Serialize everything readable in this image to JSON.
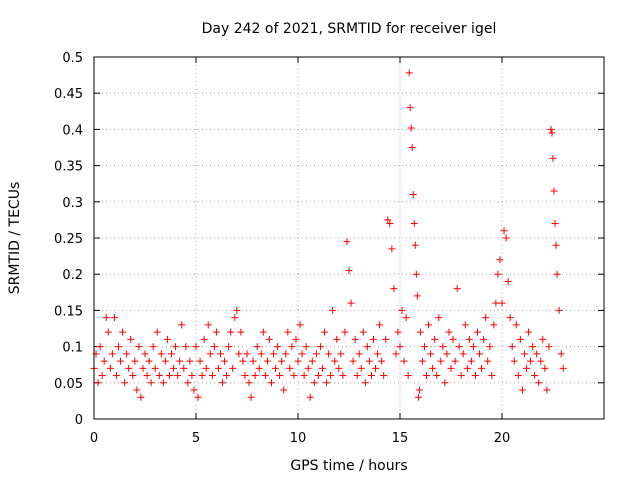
{
  "chart_data": {
    "type": "scatter",
    "title": "Day 242 of 2021, SRMTID for receiver igel",
    "xlabel": "GPS time / hours",
    "ylabel": "SRMTID / TECUs",
    "xlim": [
      0,
      25
    ],
    "ylim": [
      0,
      0.5
    ],
    "x_ticks": [
      0,
      5,
      10,
      15,
      20
    ],
    "x_tick_labels": [
      "0",
      "5",
      "10",
      "15",
      "20"
    ],
    "y_ticks": [
      0,
      0.05,
      0.1,
      0.15,
      0.2,
      0.25,
      0.3,
      0.35,
      0.4,
      0.45,
      0.5
    ],
    "y_tick_labels": [
      "0",
      "0.05",
      "0.1",
      "0.15",
      "0.2",
      "0.25",
      "0.3",
      "0.35",
      "0.4",
      "0.45",
      "0.5"
    ],
    "grid": true,
    "marker": "+",
    "color": "#ff0000",
    "series": [
      {
        "name": "SRMTID",
        "points": [
          [
            0.0,
            0.07
          ],
          [
            0.1,
            0.09
          ],
          [
            0.2,
            0.05
          ],
          [
            0.3,
            0.1
          ],
          [
            0.4,
            0.06
          ],
          [
            0.5,
            0.08
          ],
          [
            0.6,
            0.14
          ],
          [
            0.7,
            0.12
          ],
          [
            0.8,
            0.07
          ],
          [
            0.9,
            0.09
          ],
          [
            1.0,
            0.14
          ],
          [
            1.1,
            0.06
          ],
          [
            1.2,
            0.1
          ],
          [
            1.3,
            0.08
          ],
          [
            1.4,
            0.12
          ],
          [
            1.5,
            0.05
          ],
          [
            1.6,
            0.09
          ],
          [
            1.7,
            0.07
          ],
          [
            1.8,
            0.11
          ],
          [
            1.9,
            0.06
          ],
          [
            2.0,
            0.08
          ],
          [
            2.1,
            0.04
          ],
          [
            2.2,
            0.1
          ],
          [
            2.3,
            0.03
          ],
          [
            2.4,
            0.07
          ],
          [
            2.5,
            0.09
          ],
          [
            2.6,
            0.06
          ],
          [
            2.7,
            0.08
          ],
          [
            2.8,
            0.05
          ],
          [
            2.9,
            0.1
          ],
          [
            3.0,
            0.07
          ],
          [
            3.1,
            0.12
          ],
          [
            3.2,
            0.06
          ],
          [
            3.3,
            0.09
          ],
          [
            3.4,
            0.05
          ],
          [
            3.5,
            0.08
          ],
          [
            3.6,
            0.11
          ],
          [
            3.7,
            0.06
          ],
          [
            3.8,
            0.09
          ],
          [
            3.9,
            0.07
          ],
          [
            4.0,
            0.1
          ],
          [
            4.1,
            0.06
          ],
          [
            4.2,
            0.08
          ],
          [
            4.3,
            0.13
          ],
          [
            4.4,
            0.07
          ],
          [
            4.5,
            0.1
          ],
          [
            4.6,
            0.05
          ],
          [
            4.7,
            0.08
          ],
          [
            4.8,
            0.06
          ],
          [
            4.9,
            0.04
          ],
          [
            5.0,
            0.1
          ],
          [
            5.1,
            0.03
          ],
          [
            5.2,
            0.08
          ],
          [
            5.3,
            0.06
          ],
          [
            5.4,
            0.11
          ],
          [
            5.5,
            0.07
          ],
          [
            5.6,
            0.13
          ],
          [
            5.7,
            0.09
          ],
          [
            5.8,
            0.06
          ],
          [
            5.9,
            0.1
          ],
          [
            6.0,
            0.12
          ],
          [
            6.1,
            0.07
          ],
          [
            6.2,
            0.09
          ],
          [
            6.3,
            0.05
          ],
          [
            6.4,
            0.08
          ],
          [
            6.5,
            0.06
          ],
          [
            6.6,
            0.1
          ],
          [
            6.7,
            0.12
          ],
          [
            6.8,
            0.07
          ],
          [
            6.9,
            0.14
          ],
          [
            7.0,
            0.15
          ],
          [
            7.1,
            0.09
          ],
          [
            7.2,
            0.12
          ],
          [
            7.3,
            0.08
          ],
          [
            7.4,
            0.06
          ],
          [
            7.5,
            0.09
          ],
          [
            7.6,
            0.05
          ],
          [
            7.7,
            0.03
          ],
          [
            7.8,
            0.08
          ],
          [
            7.9,
            0.06
          ],
          [
            8.0,
            0.1
          ],
          [
            8.1,
            0.07
          ],
          [
            8.2,
            0.09
          ],
          [
            8.3,
            0.12
          ],
          [
            8.4,
            0.06
          ],
          [
            8.5,
            0.08
          ],
          [
            8.6,
            0.11
          ],
          [
            8.7,
            0.05
          ],
          [
            8.8,
            0.09
          ],
          [
            8.9,
            0.07
          ],
          [
            9.0,
            0.1
          ],
          [
            9.1,
            0.06
          ],
          [
            9.2,
            0.08
          ],
          [
            9.3,
            0.04
          ],
          [
            9.4,
            0.09
          ],
          [
            9.5,
            0.12
          ],
          [
            9.6,
            0.07
          ],
          [
            9.7,
            0.1
          ],
          [
            9.8,
            0.06
          ],
          [
            9.9,
            0.11
          ],
          [
            10.0,
            0.08
          ],
          [
            10.1,
            0.13
          ],
          [
            10.2,
            0.09
          ],
          [
            10.3,
            0.06
          ],
          [
            10.4,
            0.1
          ],
          [
            10.5,
            0.07
          ],
          [
            10.6,
            0.03
          ],
          [
            10.7,
            0.08
          ],
          [
            10.8,
            0.05
          ],
          [
            10.9,
            0.09
          ],
          [
            11.0,
            0.06
          ],
          [
            11.1,
            0.1
          ],
          [
            11.2,
            0.07
          ],
          [
            11.3,
            0.12
          ],
          [
            11.4,
            0.05
          ],
          [
            11.5,
            0.09
          ],
          [
            11.6,
            0.06
          ],
          [
            11.7,
            0.15
          ],
          [
            11.8,
            0.08
          ],
          [
            11.9,
            0.11
          ],
          [
            12.0,
            0.07
          ],
          [
            12.1,
            0.09
          ],
          [
            12.2,
            0.06
          ],
          [
            12.3,
            0.12
          ],
          [
            12.4,
            0.245
          ],
          [
            12.5,
            0.205
          ],
          [
            12.6,
            0.16
          ],
          [
            12.7,
            0.08
          ],
          [
            12.8,
            0.11
          ],
          [
            12.9,
            0.06
          ],
          [
            13.0,
            0.09
          ],
          [
            13.1,
            0.07
          ],
          [
            13.2,
            0.12
          ],
          [
            13.3,
            0.05
          ],
          [
            13.4,
            0.1
          ],
          [
            13.5,
            0.08
          ],
          [
            13.6,
            0.06
          ],
          [
            13.7,
            0.11
          ],
          [
            13.8,
            0.07
          ],
          [
            13.9,
            0.09
          ],
          [
            14.0,
            0.13
          ],
          [
            14.1,
            0.08
          ],
          [
            14.2,
            0.06
          ],
          [
            14.3,
            0.11
          ],
          [
            14.4,
            0.275
          ],
          [
            14.5,
            0.27
          ],
          [
            14.6,
            0.235
          ],
          [
            14.7,
            0.18
          ],
          [
            14.8,
            0.09
          ],
          [
            14.9,
            0.12
          ],
          [
            15.0,
            0.1
          ],
          [
            15.1,
            0.15
          ],
          [
            15.2,
            0.08
          ],
          [
            15.3,
            0.14
          ],
          [
            15.4,
            0.06
          ],
          [
            15.45,
            0.478
          ],
          [
            15.5,
            0.43
          ],
          [
            15.55,
            0.402
          ],
          [
            15.6,
            0.375
          ],
          [
            15.65,
            0.31
          ],
          [
            15.7,
            0.27
          ],
          [
            15.75,
            0.24
          ],
          [
            15.8,
            0.2
          ],
          [
            15.85,
            0.17
          ],
          [
            15.9,
            0.03
          ],
          [
            15.95,
            0.04
          ],
          [
            16.0,
            0.12
          ],
          [
            16.1,
            0.08
          ],
          [
            16.2,
            0.1
          ],
          [
            16.3,
            0.06
          ],
          [
            16.4,
            0.13
          ],
          [
            16.5,
            0.09
          ],
          [
            16.6,
            0.07
          ],
          [
            16.7,
            0.11
          ],
          [
            16.8,
            0.06
          ],
          [
            16.9,
            0.14
          ],
          [
            17.0,
            0.08
          ],
          [
            17.1,
            0.1
          ],
          [
            17.2,
            0.05
          ],
          [
            17.3,
            0.09
          ],
          [
            17.4,
            0.12
          ],
          [
            17.5,
            0.07
          ],
          [
            17.6,
            0.11
          ],
          [
            17.7,
            0.08
          ],
          [
            17.8,
            0.18
          ],
          [
            17.9,
            0.1
          ],
          [
            18.0,
            0.06
          ],
          [
            18.1,
            0.09
          ],
          [
            18.2,
            0.13
          ],
          [
            18.3,
            0.07
          ],
          [
            18.4,
            0.11
          ],
          [
            18.5,
            0.08
          ],
          [
            18.6,
            0.1
          ],
          [
            18.7,
            0.06
          ],
          [
            18.8,
            0.12
          ],
          [
            18.9,
            0.09
          ],
          [
            19.0,
            0.07
          ],
          [
            19.1,
            0.11
          ],
          [
            19.2,
            0.14
          ],
          [
            19.3,
            0.08
          ],
          [
            19.4,
            0.1
          ],
          [
            19.5,
            0.06
          ],
          [
            19.6,
            0.13
          ],
          [
            19.7,
            0.16
          ],
          [
            19.8,
            0.2
          ],
          [
            19.9,
            0.22
          ],
          [
            20.0,
            0.16
          ],
          [
            20.1,
            0.26
          ],
          [
            20.2,
            0.25
          ],
          [
            20.3,
            0.19
          ],
          [
            20.4,
            0.14
          ],
          [
            20.5,
            0.1
          ],
          [
            20.6,
            0.08
          ],
          [
            20.7,
            0.13
          ],
          [
            20.8,
            0.06
          ],
          [
            20.9,
            0.11
          ],
          [
            21.0,
            0.04
          ],
          [
            21.1,
            0.09
          ],
          [
            21.2,
            0.07
          ],
          [
            21.3,
            0.12
          ],
          [
            21.4,
            0.08
          ],
          [
            21.5,
            0.1
          ],
          [
            21.6,
            0.06
          ],
          [
            21.7,
            0.09
          ],
          [
            21.8,
            0.05
          ],
          [
            21.9,
            0.08
          ],
          [
            22.0,
            0.11
          ],
          [
            22.1,
            0.07
          ],
          [
            22.2,
            0.04
          ],
          [
            22.3,
            0.1
          ],
          [
            22.4,
            0.4
          ],
          [
            22.45,
            0.395
          ],
          [
            22.5,
            0.36
          ],
          [
            22.55,
            0.315
          ],
          [
            22.6,
            0.27
          ],
          [
            22.65,
            0.24
          ],
          [
            22.7,
            0.2
          ],
          [
            22.8,
            0.15
          ],
          [
            22.9,
            0.09
          ],
          [
            23.0,
            0.07
          ]
        ]
      }
    ]
  }
}
